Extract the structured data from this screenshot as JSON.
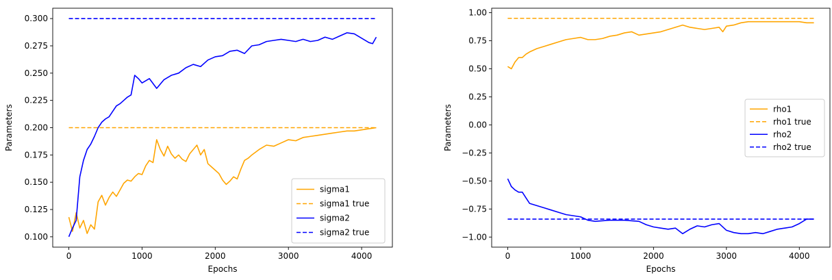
{
  "chart_data": [
    {
      "type": "line",
      "xlabel": "Epochs",
      "ylabel": "Parameters",
      "xlim": [
        -220,
        4420
      ],
      "ylim": [
        0.0905,
        0.3095
      ],
      "xticks": [
        0,
        1000,
        2000,
        3000,
        4000
      ],
      "xtick_labels": [
        "0",
        "1000",
        "2000",
        "3000",
        "4000"
      ],
      "yticks": [
        0.1,
        0.125,
        0.15,
        0.175,
        0.2,
        0.225,
        0.25,
        0.275,
        0.3
      ],
      "ytick_labels": [
        "0.100",
        "0.125",
        "0.150",
        "0.175",
        "0.200",
        "0.225",
        "0.250",
        "0.275",
        "0.300"
      ],
      "legend_position": "lower-right",
      "series": [
        {
          "name": "sigma1",
          "color": "#ffa500",
          "dash": "solid",
          "x": [
            0,
            50,
            100,
            150,
            200,
            250,
            300,
            350,
            400,
            450,
            500,
            550,
            600,
            650,
            700,
            750,
            800,
            850,
            900,
            950,
            1000,
            1050,
            1100,
            1150,
            1200,
            1250,
            1300,
            1350,
            1400,
            1450,
            1500,
            1550,
            1600,
            1650,
            1700,
            1750,
            1800,
            1850,
            1900,
            1950,
            2000,
            2050,
            2100,
            2150,
            2200,
            2250,
            2300,
            2350,
            2400,
            2450,
            2500,
            2600,
            2700,
            2800,
            2900,
            3000,
            3100,
            3200,
            3300,
            3400,
            3500,
            3600,
            3700,
            3800,
            3900,
            4000,
            4100,
            4200
          ],
          "y": [
            0.118,
            0.105,
            0.122,
            0.108,
            0.115,
            0.103,
            0.111,
            0.107,
            0.132,
            0.138,
            0.129,
            0.136,
            0.141,
            0.137,
            0.143,
            0.149,
            0.152,
            0.151,
            0.155,
            0.158,
            0.157,
            0.165,
            0.17,
            0.168,
            0.189,
            0.18,
            0.174,
            0.183,
            0.176,
            0.172,
            0.175,
            0.171,
            0.169,
            0.176,
            0.18,
            0.184,
            0.175,
            0.18,
            0.167,
            0.164,
            0.161,
            0.158,
            0.152,
            0.148,
            0.151,
            0.155,
            0.153,
            0.162,
            0.17,
            0.172,
            0.175,
            0.18,
            0.184,
            0.183,
            0.186,
            0.189,
            0.188,
            0.191,
            0.192,
            0.193,
            0.194,
            0.195,
            0.196,
            0.197,
            0.197,
            0.198,
            0.199,
            0.2
          ]
        },
        {
          "name": "sigma1 true",
          "color": "#ffa500",
          "dash": "dashed",
          "x": [
            0,
            4200
          ],
          "y": [
            0.2,
            0.2
          ]
        },
        {
          "name": "sigma2",
          "color": "#0000ff",
          "dash": "solid",
          "x": [
            0,
            50,
            100,
            150,
            200,
            250,
            300,
            350,
            400,
            450,
            500,
            550,
            600,
            650,
            700,
            750,
            800,
            850,
            900,
            950,
            1000,
            1100,
            1200,
            1300,
            1400,
            1500,
            1600,
            1700,
            1800,
            1900,
            2000,
            2100,
            2200,
            2300,
            2400,
            2500,
            2600,
            2700,
            2800,
            2900,
            3000,
            3100,
            3200,
            3300,
            3400,
            3500,
            3600,
            3700,
            3800,
            3900,
            4000,
            4100,
            4150,
            4200
          ],
          "y": [
            0.1,
            0.108,
            0.115,
            0.155,
            0.17,
            0.18,
            0.185,
            0.192,
            0.2,
            0.205,
            0.208,
            0.21,
            0.215,
            0.22,
            0.222,
            0.225,
            0.228,
            0.23,
            0.248,
            0.245,
            0.241,
            0.245,
            0.236,
            0.244,
            0.248,
            0.25,
            0.255,
            0.258,
            0.256,
            0.262,
            0.265,
            0.266,
            0.27,
            0.271,
            0.268,
            0.275,
            0.276,
            0.279,
            0.28,
            0.281,
            0.28,
            0.279,
            0.281,
            0.279,
            0.28,
            0.283,
            0.281,
            0.284,
            0.287,
            0.286,
            0.282,
            0.278,
            0.277,
            0.283
          ]
        },
        {
          "name": "sigma2 true",
          "color": "#0000ff",
          "dash": "dashed",
          "x": [
            0,
            4200
          ],
          "y": [
            0.3,
            0.3
          ]
        }
      ]
    },
    {
      "type": "line",
      "xlabel": "Epochs",
      "ylabel": "Parameters",
      "xlim": [
        -220,
        4420
      ],
      "ylim": [
        -1.09,
        1.04
      ],
      "xticks": [
        0,
        1000,
        2000,
        3000,
        4000
      ],
      "xtick_labels": [
        "0",
        "1000",
        "2000",
        "3000",
        "4000"
      ],
      "yticks": [
        -1.0,
        -0.75,
        -0.5,
        -0.25,
        0.0,
        0.25,
        0.5,
        0.75,
        1.0
      ],
      "ytick_labels": [
        "−1.00",
        "−0.75",
        "−0.50",
        "−0.25",
        "0.00",
        "0.25",
        "0.50",
        "0.75",
        "1.00"
      ],
      "legend_position": "center-right",
      "series": [
        {
          "name": "rho1",
          "color": "#ffa500",
          "dash": "solid",
          "x": [
            0,
            50,
            100,
            150,
            200,
            250,
            300,
            400,
            500,
            600,
            700,
            800,
            900,
            1000,
            1100,
            1200,
            1300,
            1400,
            1500,
            1600,
            1700,
            1800,
            1900,
            2000,
            2100,
            2200,
            2300,
            2400,
            2500,
            2600,
            2700,
            2800,
            2900,
            2950,
            3000,
            3100,
            3200,
            3300,
            3500,
            3700,
            3900,
            4000,
            4100,
            4200
          ],
          "y": [
            0.52,
            0.5,
            0.56,
            0.6,
            0.6,
            0.63,
            0.65,
            0.68,
            0.7,
            0.72,
            0.74,
            0.76,
            0.77,
            0.78,
            0.76,
            0.76,
            0.77,
            0.79,
            0.8,
            0.82,
            0.83,
            0.8,
            0.81,
            0.82,
            0.83,
            0.85,
            0.87,
            0.89,
            0.87,
            0.86,
            0.85,
            0.86,
            0.87,
            0.83,
            0.88,
            0.89,
            0.91,
            0.92,
            0.92,
            0.92,
            0.92,
            0.92,
            0.91,
            0.91
          ]
        },
        {
          "name": "rho1 true",
          "color": "#ffa500",
          "dash": "dashed",
          "x": [
            0,
            4200
          ],
          "y": [
            0.95,
            0.95
          ]
        },
        {
          "name": "rho2",
          "color": "#0000ff",
          "dash": "solid",
          "x": [
            0,
            50,
            100,
            150,
            200,
            250,
            300,
            400,
            500,
            600,
            700,
            800,
            900,
            1000,
            1100,
            1200,
            1400,
            1600,
            1800,
            1900,
            2000,
            2100,
            2200,
            2300,
            2400,
            2500,
            2600,
            2700,
            2800,
            2900,
            3000,
            3100,
            3200,
            3300,
            3400,
            3500,
            3600,
            3700,
            3800,
            3900,
            4000,
            4100,
            4200
          ],
          "y": [
            -0.48,
            -0.55,
            -0.58,
            -0.6,
            -0.6,
            -0.65,
            -0.7,
            -0.72,
            -0.74,
            -0.76,
            -0.78,
            -0.8,
            -0.81,
            -0.82,
            -0.85,
            -0.86,
            -0.85,
            -0.85,
            -0.86,
            -0.89,
            -0.91,
            -0.92,
            -0.93,
            -0.92,
            -0.97,
            -0.93,
            -0.9,
            -0.91,
            -0.89,
            -0.88,
            -0.94,
            -0.96,
            -0.97,
            -0.97,
            -0.96,
            -0.97,
            -0.95,
            -0.93,
            -0.92,
            -0.91,
            -0.88,
            -0.84,
            -0.84
          ]
        },
        {
          "name": "rho2 true",
          "color": "#0000ff",
          "dash": "dashed",
          "x": [
            0,
            4200
          ],
          "y": [
            -0.84,
            -0.84
          ]
        }
      ]
    }
  ]
}
